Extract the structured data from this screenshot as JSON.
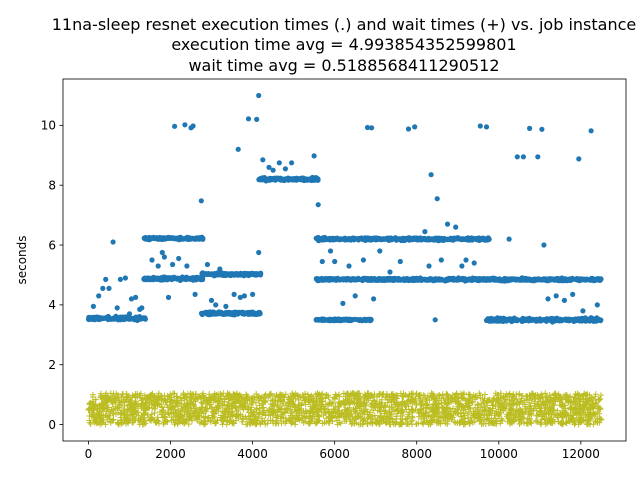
{
  "chart_data": {
    "type": "scatter",
    "title_lines": [
      "11na-sleep resnet execution times (.) and wait times (+) vs. job instance",
      "execution time avg = 4.993854352599801",
      "wait time avg = 0.5188568411290512"
    ],
    "xlabel": "",
    "ylabel": "seconds",
    "xlim": [
      -620,
      13100
    ],
    "ylim": [
      -0.55,
      11.55
    ],
    "x_ticks": [
      0,
      2000,
      4000,
      6000,
      8000,
      10000,
      12000
    ],
    "y_ticks": [
      0,
      2,
      4,
      6,
      8,
      10
    ],
    "grid": false,
    "legend": "none",
    "colors": {
      "execution": "#1f77b4",
      "wait": "#bcbd22"
    },
    "series": [
      {
        "marker": "dot",
        "segments": [
          {
            "x_range": [
              0,
              1400
            ],
            "values_around": 3.55,
            "spread": 0.08
          },
          {
            "x_range": [
              1350,
              2800
            ],
            "values_around": 6.22,
            "spread": 0.05
          },
          {
            "x_range": [
              1350,
              2800
            ],
            "values_around": 4.88,
            "spread": 0.07
          },
          {
            "x_range": [
              2750,
              4200
            ],
            "values_around": 3.72,
            "spread": 0.07
          },
          {
            "x_range": [
              2750,
              4200
            ],
            "values_around": 5.02,
            "spread": 0.06
          },
          {
            "x_range": [
              4150,
              5600
            ],
            "values_around": 8.2,
            "spread": 0.07
          },
          {
            "x_range": [
              5550,
              6900
            ],
            "values_around": 3.5,
            "spread": 0.04
          },
          {
            "x_range": [
              5550,
              12500
            ],
            "values_around": 4.85,
            "spread": 0.06
          },
          {
            "x_range": [
              5550,
              9800
            ],
            "values_around": 6.2,
            "spread": 0.06
          },
          {
            "x_range": [
              9700,
              12500
            ],
            "values_around": 3.5,
            "spread": 0.08
          }
        ],
        "outliers": [
          [
            120,
            3.95
          ],
          [
            250,
            4.3
          ],
          [
            350,
            4.55
          ],
          [
            420,
            4.85
          ],
          [
            500,
            4.55
          ],
          [
            600,
            6.1
          ],
          [
            700,
            3.9
          ],
          [
            780,
            4.85
          ],
          [
            900,
            4.9
          ],
          [
            1000,
            3.7
          ],
          [
            1050,
            4.2
          ],
          [
            1150,
            4.25
          ],
          [
            1250,
            3.85
          ],
          [
            1300,
            3.9
          ],
          [
            1550,
            5.5
          ],
          [
            1700,
            5.3
          ],
          [
            1800,
            5.75
          ],
          [
            1850,
            5.6
          ],
          [
            1950,
            4.25
          ],
          [
            2050,
            5.35
          ],
          [
            2100,
            9.97
          ],
          [
            2200,
            5.55
          ],
          [
            2350,
            10.02
          ],
          [
            2400,
            5.3
          ],
          [
            2500,
            9.92
          ],
          [
            2550,
            9.98
          ],
          [
            2600,
            4.35
          ],
          [
            2750,
            7.48
          ],
          [
            2900,
            5.35
          ],
          [
            3000,
            4.15
          ],
          [
            3100,
            4.0
          ],
          [
            3200,
            5.2
          ],
          [
            3350,
            3.95
          ],
          [
            3550,
            4.35
          ],
          [
            3650,
            9.2
          ],
          [
            3700,
            4.25
          ],
          [
            3800,
            4.3
          ],
          [
            3900,
            10.22
          ],
          [
            4000,
            4.35
          ],
          [
            4100,
            10.2
          ],
          [
            4150,
            11.0
          ],
          [
            4150,
            5.75
          ],
          [
            4250,
            8.85
          ],
          [
            4400,
            8.6
          ],
          [
            4500,
            8.5
          ],
          [
            4650,
            8.75
          ],
          [
            4800,
            8.55
          ],
          [
            4950,
            8.75
          ],
          [
            5500,
            8.98
          ],
          [
            5600,
            7.35
          ],
          [
            5700,
            5.45
          ],
          [
            5900,
            5.8
          ],
          [
            6000,
            5.45
          ],
          [
            6200,
            4.05
          ],
          [
            6350,
            5.3
          ],
          [
            6500,
            4.3
          ],
          [
            6700,
            5.5
          ],
          [
            6800,
            9.93
          ],
          [
            6900,
            9.92
          ],
          [
            6950,
            4.2
          ],
          [
            7100,
            5.8
          ],
          [
            7350,
            5.1
          ],
          [
            7600,
            5.45
          ],
          [
            7800,
            9.88
          ],
          [
            7950,
            9.95
          ],
          [
            8200,
            6.45
          ],
          [
            8300,
            5.3
          ],
          [
            8350,
            8.35
          ],
          [
            8450,
            3.5
          ],
          [
            8500,
            7.55
          ],
          [
            8600,
            5.5
          ],
          [
            8750,
            6.7
          ],
          [
            8950,
            6.6
          ],
          [
            9100,
            5.3
          ],
          [
            9200,
            5.5
          ],
          [
            9400,
            5.4
          ],
          [
            9550,
            9.98
          ],
          [
            9700,
            9.95
          ],
          [
            10250,
            6.2
          ],
          [
            10450,
            8.95
          ],
          [
            10600,
            8.95
          ],
          [
            10750,
            9.9
          ],
          [
            10950,
            8.95
          ],
          [
            11050,
            9.87
          ],
          [
            11100,
            6.0
          ],
          [
            11200,
            4.2
          ],
          [
            11400,
            4.3
          ],
          [
            11600,
            4.15
          ],
          [
            11800,
            4.35
          ],
          [
            11950,
            8.88
          ],
          [
            12050,
            3.8
          ],
          [
            12250,
            9.82
          ],
          [
            12400,
            4.0
          ]
        ]
      },
      {
        "marker": "plus",
        "x_range": [
          0,
          12500
        ],
        "y_range": [
          0.0,
          1.05
        ],
        "density": "dense band"
      }
    ]
  }
}
